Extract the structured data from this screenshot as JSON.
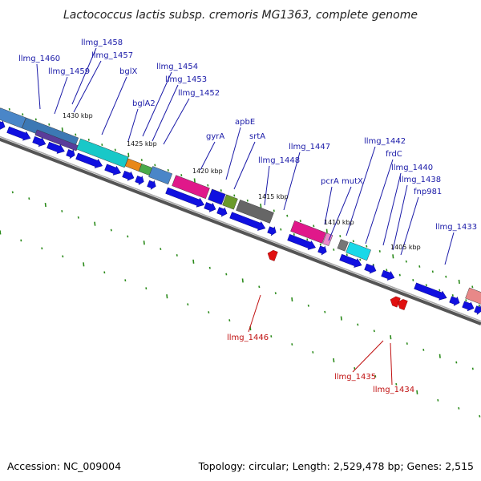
{
  "title": "Lactococcus lactis subsp. cremoris MG1363, complete genome",
  "footer": {
    "accession": "Accession: NC_009004",
    "topology": "Topology: circular; Length: 2,529,478 bp; Genes: 2,515"
  },
  "kbp_ticks": [
    "1430 kbp",
    "1425 kbp",
    "1420 kbp",
    "1415 kbp",
    "1410 kbp",
    "1405 kbp"
  ],
  "forward_labels": [
    "llmg_1460",
    "llmg_1458",
    "llmg_1457",
    "llmg_1459",
    "bglX",
    "bglA2",
    "llmg_1454",
    "llmg_1453",
    "llmg_1452",
    "gyrA",
    "apbE",
    "srtA",
    "llmg_1447",
    "llmg_1448",
    "pcrA",
    "mutX",
    "llmg_1442",
    "frdC",
    "llmg_1440",
    "llmg_1438",
    "fnp981",
    "llmg_1433"
  ],
  "reverse_labels": [
    "llmg_1446",
    "llmg_1435",
    "llmg_1434"
  ],
  "colors": {
    "gene_blue": "#1010e0",
    "gene_red": "#e01010",
    "tick_green": "#2a8a1a",
    "backbone": "#808080",
    "label_blue": "#1a1aa8",
    "label_red": "#c01010"
  }
}
